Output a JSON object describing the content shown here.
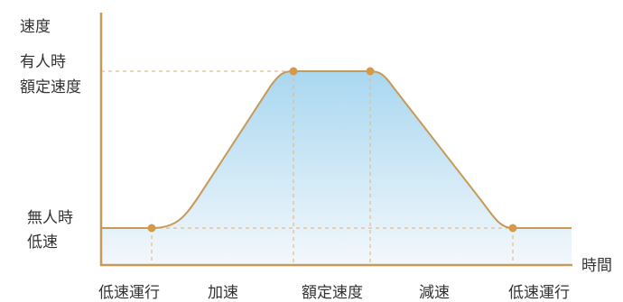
{
  "labels": {
    "y_axis": "速度",
    "x_axis": "時間",
    "rated_line1": "有人時",
    "rated_line2": "額定速度",
    "low_line1": "無人時",
    "low_line2": "低速"
  },
  "phases": [
    "低速運行",
    "加速",
    "額定速度",
    "減速",
    "低速運行"
  ],
  "colors": {
    "axis": "#c79a57",
    "curve": "#c79a57",
    "dash": "#e8b98a",
    "marker": "#d49a4a",
    "fill_top": "#a9d7f0",
    "fill_bottom": "#f3f8fc"
  }
}
